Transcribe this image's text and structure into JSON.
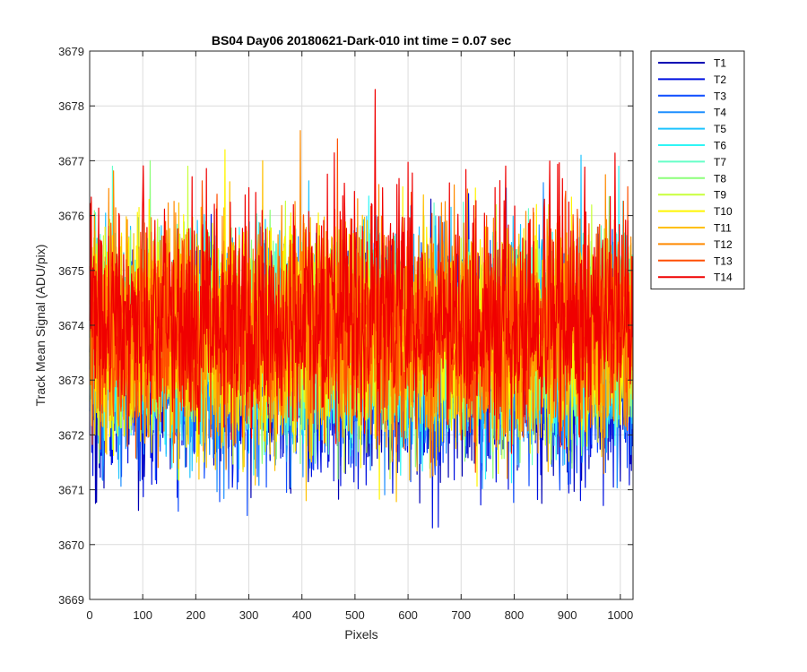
{
  "chart_data": {
    "type": "line",
    "title": "BS04 Day06 20180621-Dark-010 int time = 0.07 sec",
    "xlabel": "Pixels",
    "ylabel": "Track Mean Signal (ADU/pix)",
    "xlim": [
      0,
      1024
    ],
    "ylim": [
      3669,
      3679
    ],
    "xticks": [
      0,
      100,
      200,
      300,
      400,
      500,
      600,
      700,
      800,
      900,
      1000
    ],
    "yticks": [
      3669,
      3670,
      3671,
      3672,
      3673,
      3674,
      3675,
      3676,
      3677,
      3678,
      3679
    ],
    "grid": true,
    "legend_position": "outside top-right",
    "points_per_series": 1024,
    "note": "Each series is dense pixel-to-pixel noise; values summarized by mean and visible range.",
    "series": [
      {
        "name": "T1",
        "color": "#0000B3",
        "mean": 3673.3,
        "min": 3669.75,
        "max": 3676.3
      },
      {
        "name": "T2",
        "color": "#0011E0",
        "mean": 3673.4,
        "min": 3669.57,
        "max": 3676.4
      },
      {
        "name": "T3",
        "color": "#0F4DFF",
        "mean": 3673.5,
        "min": 3669.95,
        "max": 3676.5
      },
      {
        "name": "T4",
        "color": "#1F8FFF",
        "mean": 3673.5,
        "min": 3670.1,
        "max": 3676.6
      },
      {
        "name": "T5",
        "color": "#1FC4FF",
        "mean": 3673.6,
        "min": 3670.5,
        "max": 3677.1
      },
      {
        "name": "T6",
        "color": "#2FF5F5",
        "mean": 3673.6,
        "min": 3670.6,
        "max": 3676.9
      },
      {
        "name": "T7",
        "color": "#66FFC8",
        "mean": 3673.7,
        "min": 3670.8,
        "max": 3676.9
      },
      {
        "name": "T8",
        "color": "#8CFF7A",
        "mean": 3673.7,
        "min": 3670.4,
        "max": 3677.0
      },
      {
        "name": "T9",
        "color": "#C8FF3C",
        "mean": 3673.8,
        "min": 3670.8,
        "max": 3676.9
      },
      {
        "name": "T10",
        "color": "#FFF500",
        "mean": 3673.8,
        "min": 3670.35,
        "max": 3677.2
      },
      {
        "name": "T11",
        "color": "#FFC000",
        "mean": 3673.8,
        "min": 3670.25,
        "max": 3677.0
      },
      {
        "name": "T12",
        "color": "#FF8A00",
        "mean": 3673.9,
        "min": 3670.6,
        "max": 3677.55
      },
      {
        "name": "T13",
        "color": "#FF4F00",
        "mean": 3673.9,
        "min": 3670.7,
        "max": 3677.4
      },
      {
        "name": "T14",
        "color": "#F00000",
        "mean": 3674.0,
        "min": 3671.0,
        "max": 3678.3
      }
    ]
  }
}
